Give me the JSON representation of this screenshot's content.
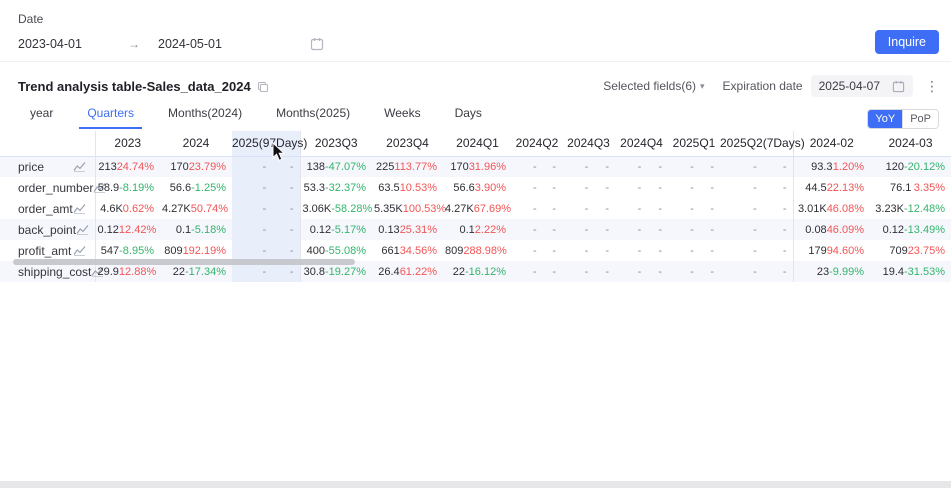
{
  "filter": {
    "label": "Date",
    "start_date": "2023-04-01",
    "arrow": "→",
    "end_date": "2024-05-01",
    "inquire_label": "Inquire"
  },
  "panel": {
    "title": "Trend analysis table-Sales_data_2024",
    "selected_fields_label": "Selected fields(6)",
    "expiration_label": "Expiration date",
    "expiration_date": "2025-04-07",
    "kebab": "⋮"
  },
  "tabs": [
    {
      "label": "year",
      "active": false
    },
    {
      "label": "Quarters",
      "active": true
    },
    {
      "label": "Months(2024)",
      "active": false
    },
    {
      "label": "Months(2025)",
      "active": false
    },
    {
      "label": "Weeks",
      "active": false
    },
    {
      "label": "Days",
      "active": false
    }
  ],
  "compare_toggle": [
    {
      "label": "YoY",
      "active": true
    },
    {
      "label": "PoP",
      "active": false
    }
  ],
  "colors": {
    "accent_blue": "#3d6ef5",
    "up_red": "#f25555",
    "down_green": "#35b46c",
    "column_highlight": "#e9eefb",
    "row_stripe": "#f5f7fd"
  },
  "table": {
    "columns": [
      {
        "label": "2023"
      },
      {
        "label": "2024"
      },
      {
        "label": "2025(97Days)",
        "highlight": true,
        "group_end": true
      },
      {
        "label": "2023Q3"
      },
      {
        "label": "2023Q4"
      },
      {
        "label": "2024Q1"
      },
      {
        "label": "2024Q2"
      },
      {
        "label": "2024Q3"
      },
      {
        "label": "2024Q4"
      },
      {
        "label": "2025Q1"
      },
      {
        "label": "2025Q2(7Days)",
        "group_end": true
      },
      {
        "label": "2024-02"
      },
      {
        "label": "2024-03"
      }
    ],
    "rows": [
      {
        "label": "price",
        "stripe": true,
        "cells": [
          {
            "v": "213",
            "p": "24.74%",
            "t": "up"
          },
          {
            "v": "170",
            "p": "23.79%",
            "t": "up"
          },
          {
            "v": "-",
            "p": "-",
            "t": "flat"
          },
          {
            "v": "138",
            "p": "-47.07%",
            "t": "down"
          },
          {
            "v": "225",
            "p": "113.77%",
            "t": "up"
          },
          {
            "v": "170",
            "p": "31.96%",
            "t": "up"
          },
          {
            "v": "-",
            "p": "-",
            "t": "flat"
          },
          {
            "v": "-",
            "p": "-",
            "t": "flat"
          },
          {
            "v": "-",
            "p": "-",
            "t": "flat"
          },
          {
            "v": "-",
            "p": "-",
            "t": "flat"
          },
          {
            "v": "-",
            "p": "-",
            "t": "flat"
          },
          {
            "v": "93.3",
            "p": "1.20%",
            "t": "up"
          },
          {
            "v": "120",
            "p": "-20.12%",
            "t": "down"
          }
        ]
      },
      {
        "label": "order_number",
        "stripe": false,
        "cells": [
          {
            "v": "58.9",
            "p": "-8.19%",
            "t": "down"
          },
          {
            "v": "56.6",
            "p": "-1.25%",
            "t": "down"
          },
          {
            "v": "-",
            "p": "-",
            "t": "flat"
          },
          {
            "v": "53.3",
            "p": "-32.37%",
            "t": "down"
          },
          {
            "v": "63.5",
            "p": "10.53%",
            "t": "up"
          },
          {
            "v": "56.6",
            "p": "3.90%",
            "t": "up"
          },
          {
            "v": "-",
            "p": "-",
            "t": "flat"
          },
          {
            "v": "-",
            "p": "-",
            "t": "flat"
          },
          {
            "v": "-",
            "p": "-",
            "t": "flat"
          },
          {
            "v": "-",
            "p": "-",
            "t": "flat"
          },
          {
            "v": "-",
            "p": "-",
            "t": "flat"
          },
          {
            "v": "44.5",
            "p": "22.13%",
            "t": "up"
          },
          {
            "v": "76.1",
            "p": "3.35%",
            "t": "up"
          }
        ]
      },
      {
        "label": "order_amt",
        "stripe": false,
        "cells": [
          {
            "v": "4.6K",
            "p": "0.62%",
            "t": "up"
          },
          {
            "v": "4.27K",
            "p": "50.74%",
            "t": "up"
          },
          {
            "v": "-",
            "p": "-",
            "t": "flat"
          },
          {
            "v": "3.06K",
            "p": "-58.28%",
            "t": "down"
          },
          {
            "v": "5.35K",
            "p": "100.53%",
            "t": "up"
          },
          {
            "v": "4.27K",
            "p": "67.69%",
            "t": "up"
          },
          {
            "v": "-",
            "p": "-",
            "t": "flat"
          },
          {
            "v": "-",
            "p": "-",
            "t": "flat"
          },
          {
            "v": "-",
            "p": "-",
            "t": "flat"
          },
          {
            "v": "-",
            "p": "-",
            "t": "flat"
          },
          {
            "v": "-",
            "p": "-",
            "t": "flat"
          },
          {
            "v": "3.01K",
            "p": "46.08%",
            "t": "up"
          },
          {
            "v": "3.23K",
            "p": "-12.48%",
            "t": "down"
          }
        ]
      },
      {
        "label": "back_point",
        "stripe": true,
        "cells": [
          {
            "v": "0.12",
            "p": "12.42%",
            "t": "up"
          },
          {
            "v": "0.1",
            "p": "-5.18%",
            "t": "down"
          },
          {
            "v": "-",
            "p": "-",
            "t": "flat"
          },
          {
            "v": "0.12",
            "p": "-5.17%",
            "t": "down"
          },
          {
            "v": "0.13",
            "p": "25.31%",
            "t": "up"
          },
          {
            "v": "0.1",
            "p": "2.22%",
            "t": "up"
          },
          {
            "v": "-",
            "p": "-",
            "t": "flat"
          },
          {
            "v": "-",
            "p": "-",
            "t": "flat"
          },
          {
            "v": "-",
            "p": "-",
            "t": "flat"
          },
          {
            "v": "-",
            "p": "-",
            "t": "flat"
          },
          {
            "v": "-",
            "p": "-",
            "t": "flat"
          },
          {
            "v": "0.08",
            "p": "46.09%",
            "t": "up"
          },
          {
            "v": "0.12",
            "p": "-13.49%",
            "t": "down"
          }
        ]
      },
      {
        "label": "profit_amt",
        "stripe": false,
        "cells": [
          {
            "v": "547",
            "p": "-8.95%",
            "t": "down"
          },
          {
            "v": "809",
            "p": "192.19%",
            "t": "up"
          },
          {
            "v": "-",
            "p": "-",
            "t": "flat"
          },
          {
            "v": "400",
            "p": "-55.08%",
            "t": "down"
          },
          {
            "v": "661",
            "p": "34.56%",
            "t": "up"
          },
          {
            "v": "809",
            "p": "288.98%",
            "t": "up"
          },
          {
            "v": "-",
            "p": "-",
            "t": "flat"
          },
          {
            "v": "-",
            "p": "-",
            "t": "flat"
          },
          {
            "v": "-",
            "p": "-",
            "t": "flat"
          },
          {
            "v": "-",
            "p": "-",
            "t": "flat"
          },
          {
            "v": "-",
            "p": "-",
            "t": "flat"
          },
          {
            "v": "179",
            "p": "94.60%",
            "t": "up"
          },
          {
            "v": "709",
            "p": "23.75%",
            "t": "up"
          }
        ]
      },
      {
        "label": "shipping_cost",
        "stripe": true,
        "cells": [
          {
            "v": "29.9",
            "p": "12.88%",
            "t": "up"
          },
          {
            "v": "22",
            "p": "-17.34%",
            "t": "down"
          },
          {
            "v": "-",
            "p": "-",
            "t": "flat"
          },
          {
            "v": "30.8",
            "p": "-19.27%",
            "t": "down"
          },
          {
            "v": "26.4",
            "p": "61.22%",
            "t": "up"
          },
          {
            "v": "22",
            "p": "-16.12%",
            "t": "down"
          },
          {
            "v": "-",
            "p": "-",
            "t": "flat"
          },
          {
            "v": "-",
            "p": "-",
            "t": "flat"
          },
          {
            "v": "-",
            "p": "-",
            "t": "flat"
          },
          {
            "v": "-",
            "p": "-",
            "t": "flat"
          },
          {
            "v": "-",
            "p": "-",
            "t": "flat"
          },
          {
            "v": "23",
            "p": "-9.99%",
            "t": "down"
          },
          {
            "v": "19.4",
            "p": "-31.53%",
            "t": "down"
          }
        ]
      }
    ]
  }
}
